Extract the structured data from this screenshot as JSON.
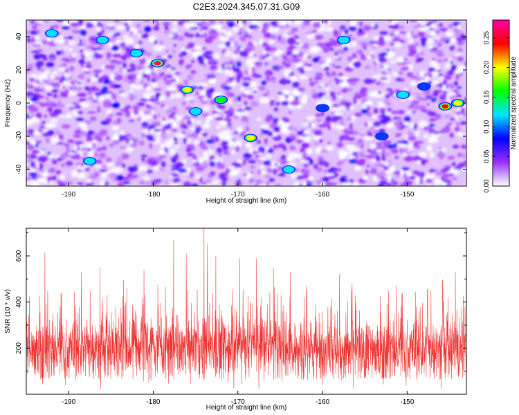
{
  "title": "C2E3.2024.345.07.31.G09",
  "chart_data": [
    {
      "type": "heatmap",
      "xlabel": "Height of straight line (km)",
      "ylabel": "Frequency (Hz)",
      "xlim": [
        -195,
        -143
      ],
      "ylim": [
        -50,
        50
      ],
      "x_ticks": [
        -190,
        -180,
        -170,
        -160,
        -150
      ],
      "y_ticks": [
        -40,
        -20,
        0,
        20,
        40
      ],
      "colorbar": {
        "label": "Normalized spectral amplitude",
        "range": [
          0,
          0.28
        ],
        "ticks": [
          0,
          0.05,
          0.1,
          0.15,
          0.2,
          0.25
        ],
        "tick_labels": [
          "0.00",
          "0.05",
          "0.10",
          "0.15",
          "0.20",
          "0.25"
        ],
        "colors": [
          "#ffffff",
          "#9b30ff",
          "#0000ff",
          "#00e5ff",
          "#00ff00",
          "#ffff00",
          "#ff0000",
          "#ff00aa"
        ]
      },
      "hotspots": [
        {
          "x": -179.5,
          "y": 24,
          "value": 0.27
        },
        {
          "x": -176,
          "y": 8,
          "value": 0.2
        },
        {
          "x": -172,
          "y": 2,
          "value": 0.18
        },
        {
          "x": -168.5,
          "y": -21,
          "value": 0.2
        },
        {
          "x": -145.5,
          "y": -2,
          "value": 0.26
        },
        {
          "x": -144,
          "y": 0,
          "value": 0.22
        },
        {
          "x": -150.5,
          "y": 5,
          "value": 0.15
        },
        {
          "x": -187.5,
          "y": -35,
          "value": 0.12
        },
        {
          "x": -157.5,
          "y": 38,
          "value": 0.12
        },
        {
          "x": -186,
          "y": 38,
          "value": 0.14
        },
        {
          "x": -192,
          "y": 42,
          "value": 0.12
        },
        {
          "x": -164,
          "y": -40,
          "value": 0.15
        },
        {
          "x": -182,
          "y": 30,
          "value": 0.13
        },
        {
          "x": -175,
          "y": -5,
          "value": 0.13
        },
        {
          "x": -160,
          "y": -3,
          "value": 0.1
        },
        {
          "x": -153,
          "y": -20,
          "value": 0.09
        },
        {
          "x": -148,
          "y": 10,
          "value": 0.1
        }
      ]
    },
    {
      "type": "line",
      "xlabel": "Height of straight line (km)",
      "ylabel": "SNR (10 * v/v)",
      "xlim": [
        -195,
        -143
      ],
      "ylim": [
        0,
        720
      ],
      "x_ticks": [
        -190,
        -180,
        -170,
        -160,
        -150
      ],
      "y_ticks": [
        200,
        400,
        600
      ],
      "color": "#ee3333",
      "series": [
        {
          "x_range": [
            -195,
            -143
          ],
          "baseline": 200,
          "noise_amplitude": 140,
          "peaks": [
            {
              "x": -192.8,
              "y": 615
            },
            {
              "x": -188.5,
              "y": 530
            },
            {
              "x": -186.3,
              "y": 550
            },
            {
              "x": -183.5,
              "y": 495
            },
            {
              "x": -181.1,
              "y": 540
            },
            {
              "x": -177.6,
              "y": 670
            },
            {
              "x": -176.1,
              "y": 610
            },
            {
              "x": -174.0,
              "y": 720
            },
            {
              "x": -173.6,
              "y": 650
            },
            {
              "x": -172.6,
              "y": 600
            },
            {
              "x": -169.8,
              "y": 590
            },
            {
              "x": -167.8,
              "y": 590
            },
            {
              "x": -165.8,
              "y": 545
            },
            {
              "x": -163.8,
              "y": 530
            },
            {
              "x": -161.9,
              "y": 470
            },
            {
              "x": -158.0,
              "y": 520
            },
            {
              "x": -156.5,
              "y": 480
            },
            {
              "x": -151.3,
              "y": 470
            },
            {
              "x": -147.6,
              "y": 455
            },
            {
              "x": -145.8,
              "y": 495
            },
            {
              "x": -144.3,
              "y": 530
            }
          ]
        }
      ]
    }
  ]
}
